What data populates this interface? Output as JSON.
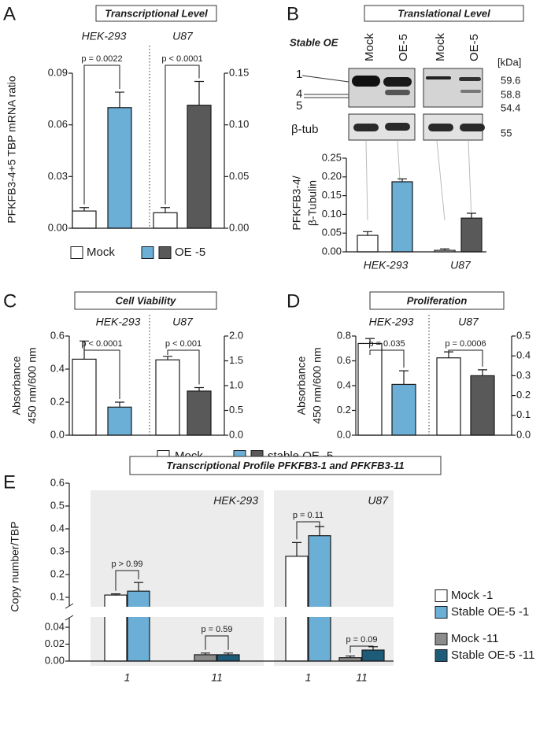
{
  "chart_data": [
    {
      "panel": "A",
      "type": "bar",
      "title": "Transcriptional Level",
      "ylabel": [
        "PFKFB3-4+5 TBP mRNA ratio"
      ],
      "ylim": [
        0,
        0.09
      ],
      "yticks": [
        {
          "value": 0,
          "label": "0.00"
        },
        0.03,
        0.06,
        0.09
      ],
      "y2lim": [
        0,
        0.15
      ],
      "y2ticks": [
        {
          "value": 0,
          "label": "0.00"
        },
        0.05,
        {
          "value": 0.1,
          "label": "0.10"
        },
        0.15
      ],
      "groups": [
        {
          "name": "HEK-293",
          "axis": "y",
          "clusters": [
            {
              "values": [
                0.01,
                0.07
              ],
              "errors": [
                0.002,
                0.009
              ],
              "colors": [
                "#ffffff",
                "#6baed6"
              ],
              "p": "p = 0.0022"
            }
          ]
        },
        {
          "name": "U87",
          "axis": "y2",
          "clusters": [
            {
              "values": [
                0.015,
                0.119
              ],
              "errors": [
                0.005,
                0.023
              ],
              "colors": [
                "#ffffff",
                "#595959"
              ],
              "p": "p < 0.0001"
            }
          ]
        }
      ],
      "legend": [
        {
          "label": "Mock",
          "colors": [
            "#ffffff"
          ]
        },
        {
          "label": "OE -5",
          "colors": [
            "#6baed6",
            "#595959"
          ]
        }
      ]
    },
    {
      "panel": "B",
      "type": "bar",
      "title": "Translational Level",
      "ylabel": [
        "PFKFB3-4/",
        "β-Tubulin"
      ],
      "ylim": [
        0,
        0.25
      ],
      "yticks": [
        {
          "value": 0,
          "label": "0.00"
        },
        0.05,
        {
          "value": 0.1,
          "label": "0.10"
        },
        0.15,
        {
          "value": 0.2,
          "label": "0.20"
        },
        0.25
      ],
      "groups": [
        {
          "name": "HEK-293",
          "axis": "y",
          "clusters": [
            {
              "values": [
                0.044,
                0.187
              ],
              "errors": [
                0.01,
                0.008
              ],
              "colors": [
                "#ffffff",
                "#6baed6"
              ]
            }
          ]
        },
        {
          "name": "U87",
          "axis": "y",
          "clusters": [
            {
              "values": [
                0.004,
                0.09
              ],
              "errors": [
                0.004,
                0.013
              ],
              "colors": [
                "#ffffff",
                "#595959"
              ]
            }
          ]
        }
      ],
      "blot": {
        "label": "Stable OE",
        "lanes": [
          "Mock",
          "OE-5",
          "Mock",
          "OE-5"
        ],
        "unit": "[kDa]",
        "bands": [
          "1",
          "4",
          "5"
        ],
        "band_kda": [
          59.6,
          58.8,
          54.4
        ],
        "loading": "β-tub",
        "loading_kda": 55
      }
    },
    {
      "panel": "C",
      "type": "bar",
      "title": "Cell Viability",
      "ylabel": [
        "Absorbance",
        "450 nm/600 nm"
      ],
      "ylim": [
        0,
        0.6
      ],
      "yticks": [
        {
          "value": 0,
          "label": "0.0"
        },
        0.2,
        0.4,
        0.6
      ],
      "y2lim": [
        0,
        2
      ],
      "y2ticks": [
        {
          "value": 0,
          "label": "0.0"
        },
        0.5,
        {
          "value": 1,
          "label": "1.0"
        },
        1.5,
        {
          "value": 2,
          "label": "2.0"
        }
      ],
      "groups": [
        {
          "name": "HEK-293",
          "axis": "y",
          "clusters": [
            {
              "values": [
                0.46,
                0.17
              ],
              "errors": [
                0.11,
                0.03
              ],
              "colors": [
                "#ffffff",
                "#6baed6"
              ],
              "p": "p < 0.0001"
            }
          ]
        },
        {
          "name": "U87",
          "axis": "y2",
          "clusters": [
            {
              "values": [
                1.52,
                0.89
              ],
              "errors": [
                0.07,
                0.07
              ],
              "colors": [
                "#ffffff",
                "#595959"
              ],
              "p": "p < 0.001"
            }
          ]
        }
      ],
      "legend": [
        {
          "label": "Mock",
          "colors": [
            "#ffffff"
          ]
        },
        {
          "label": "stable OE -5",
          "colors": [
            "#6baed6",
            "#595959"
          ]
        }
      ]
    },
    {
      "panel": "D",
      "type": "bar",
      "title": "Proliferation",
      "ylabel": [
        "Absorbance",
        "450 nm/600 nm"
      ],
      "ylim": [
        0,
        0.8
      ],
      "yticks": [
        {
          "value": 0,
          "label": "0.0"
        },
        0.2,
        0.4,
        0.6,
        0.8
      ],
      "y2lim": [
        0,
        0.5
      ],
      "y2ticks": [
        {
          "value": 0,
          "label": "0.0"
        },
        0.1,
        0.2,
        0.3,
        0.4,
        0.5
      ],
      "groups": [
        {
          "name": "HEK-293",
          "axis": "y",
          "clusters": [
            {
              "values": [
                0.74,
                0.41
              ],
              "errors": [
                0.04,
                0.11
              ],
              "colors": [
                "#ffffff",
                "#6baed6"
              ],
              "p": "p = 0.035"
            }
          ]
        },
        {
          "name": "U87",
          "axis": "y2",
          "clusters": [
            {
              "values": [
                0.39,
                0.3
              ],
              "errors": [
                0.03,
                0.03
              ],
              "colors": [
                "#ffffff",
                "#595959"
              ],
              "p": "p = 0.0006"
            }
          ]
        }
      ]
    },
    {
      "panel": "E",
      "type": "bar",
      "title": "Transcriptional Profile PFKFB3-1 and PFKFB3-11",
      "ylabel": [
        "Copy number/TBP"
      ],
      "ylim": [
        0,
        0.6
      ],
      "ybreak": [
        0.04,
        0.1
      ],
      "yticks": [
        {
          "value": 0,
          "label": "0.00"
        },
        0.02,
        0.04,
        0.1,
        0.2,
        0.3,
        0.4,
        0.5,
        0.6
      ],
      "groups": [
        {
          "name": "HEK-293",
          "axis": "y",
          "clusters": [
            {
              "category": "1",
              "values": [
                0.11,
                0.127
              ],
              "errors": [
                0.005,
                0.038
              ],
              "colors": [
                "#ffffff",
                "#6baed6"
              ],
              "p": "p > 0.99"
            },
            {
              "category": "11",
              "values": [
                0.0075,
                0.0075
              ],
              "errors": [
                0.002,
                0.002
              ],
              "colors": [
                "#8c8c8c",
                "#1d5b79"
              ],
              "p": "p = 0.59"
            }
          ]
        },
        {
          "name": "U87",
          "axis": "y",
          "clusters": [
            {
              "category": "1",
              "values": [
                0.28,
                0.37
              ],
              "errors": [
                0.06,
                0.04
              ],
              "colors": [
                "#ffffff",
                "#6baed6"
              ],
              "p": "p = 0.11"
            },
            {
              "category": "11",
              "values": [
                0.004,
                0.013
              ],
              "errors": [
                0.002,
                0.004
              ],
              "colors": [
                "#8c8c8c",
                "#1d5b79"
              ],
              "p": "p = 0.09"
            }
          ]
        }
      ],
      "legend": [
        {
          "label": "Mock -1",
          "colors": [
            "#ffffff"
          ]
        },
        {
          "label": "Stable OE-5 -1",
          "colors": [
            "#6baed6"
          ]
        },
        {
          "label": "Mock -11",
          "colors": [
            "#8c8c8c"
          ]
        },
        {
          "label": "Stable OE-5 -11",
          "colors": [
            "#1d5b79"
          ]
        }
      ]
    }
  ]
}
